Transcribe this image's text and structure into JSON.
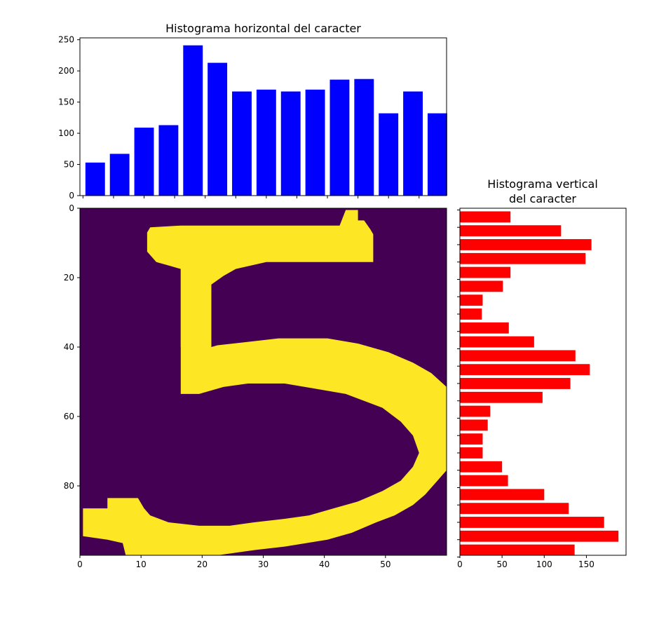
{
  "colors": {
    "horizontal_bars": "#0000ff",
    "vertical_bars": "#ff0000",
    "image_background": "#440154",
    "image_foreground": "#fde725"
  },
  "chart_data": [
    {
      "type": "bar",
      "title": "Histograma horizontal del caracter",
      "orientation": "vertical-bars",
      "bin_width": 4,
      "x": [
        2,
        6,
        10,
        14,
        18,
        22,
        26,
        30,
        34,
        38,
        42,
        46,
        50,
        54,
        58
      ],
      "values": [
        53,
        67,
        109,
        113,
        241,
        213,
        167,
        170,
        167,
        170,
        186,
        187,
        132,
        167,
        132
      ],
      "xlim": [
        -0.5,
        59.5
      ],
      "ylim": [
        0,
        253
      ],
      "yticks": [
        0,
        50,
        100,
        150,
        200,
        250
      ],
      "bar_color": "#0000ff"
    },
    {
      "type": "heatmap",
      "colormap": "viridis",
      "shape": [
        100,
        60
      ],
      "xticks": [
        0,
        10,
        20,
        30,
        40,
        50
      ],
      "yticks": [
        0,
        20,
        40,
        60,
        80
      ],
      "content": "binary image of the handwritten digit 5"
    },
    {
      "type": "bar",
      "title": "Histograma vertical\ndel caracter",
      "orientation": "horizontal-bars",
      "bin_width": 4,
      "y": [
        2,
        6,
        10,
        14,
        18,
        22,
        26,
        30,
        34,
        38,
        42,
        46,
        50,
        54,
        58,
        62,
        66,
        70,
        74,
        78,
        82,
        86,
        90,
        94,
        98
      ],
      "values": [
        60,
        120,
        156,
        149,
        60,
        51,
        27,
        26,
        58,
        88,
        137,
        154,
        131,
        98,
        36,
        33,
        27,
        27,
        50,
        57,
        100,
        129,
        171,
        188,
        136
      ],
      "xlim": [
        0,
        197
      ],
      "ylim": [
        -0.5,
        99.5
      ],
      "xticks": [
        0,
        50,
        100,
        150
      ],
      "bar_color": "#ff0000"
    }
  ]
}
